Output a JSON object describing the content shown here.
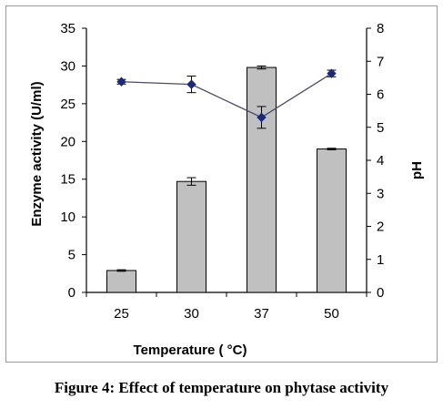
{
  "caption": "Figure 4: Effect of temperature on phytase activity",
  "chart_data": {
    "type": "bar",
    "categories": [
      "25",
      "30",
      "37",
      "50"
    ],
    "xlabel": "Temperature ( °C)",
    "ylabel": "Enzyme activity  (U/ml)",
    "y2label": "pH",
    "ylim": [
      0,
      35
    ],
    "y2lim": [
      0,
      8
    ],
    "yticks": [
      0,
      5,
      10,
      15,
      20,
      25,
      30,
      35
    ],
    "y2ticks": [
      0,
      1,
      2,
      3,
      4,
      5,
      6,
      7,
      8
    ],
    "grid": false,
    "legend": "none",
    "series": [
      {
        "kind": "bar",
        "axis": "left",
        "values": [
          2.9,
          14.7,
          29.8,
          19.0
        ],
        "errors": [
          0.1,
          0.5,
          0.2,
          0.1
        ],
        "color": "#c0c0c0"
      },
      {
        "kind": "line",
        "axis": "right",
        "values": [
          6.38,
          6.3,
          5.3,
          6.63
        ],
        "errors": [
          0.07,
          0.25,
          0.33,
          0.1
        ],
        "color": "#1a2a7a"
      }
    ]
  }
}
